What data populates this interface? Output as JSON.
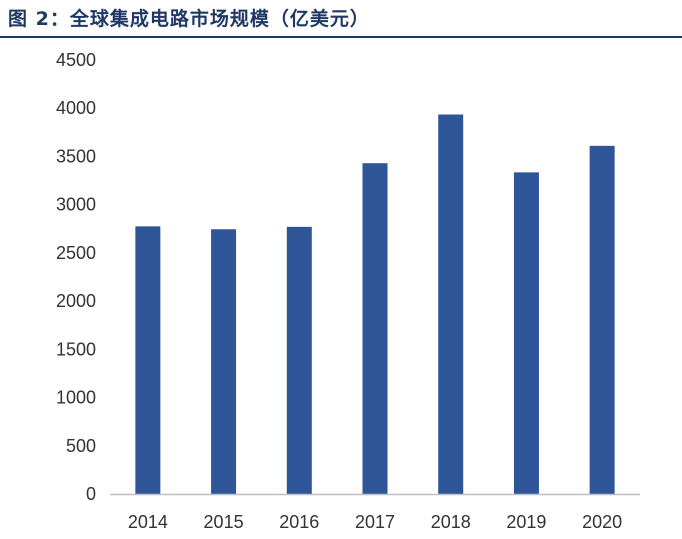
{
  "figure": {
    "title": "图 2：全球集成电路市场规模（亿美元）"
  },
  "chart_data": {
    "type": "bar",
    "title": "全球集成电路市场规模（亿美元）",
    "categories": [
      "2014",
      "2015",
      "2016",
      "2017",
      "2018",
      "2019",
      "2020"
    ],
    "values": [
      2775,
      2745,
      2770,
      3430,
      3935,
      3335,
      3610
    ],
    "ylim": [
      0,
      4500
    ],
    "yticks": [
      0,
      500,
      1000,
      1500,
      2000,
      2500,
      3000,
      3500,
      4000,
      4500
    ],
    "grid": false,
    "legend": "none",
    "bar_color": "#2e5597",
    "axis_color": "#bfbfbf"
  }
}
